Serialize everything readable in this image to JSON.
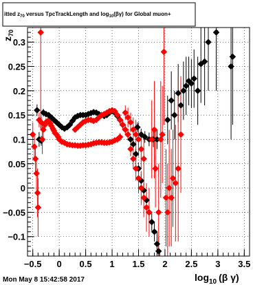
{
  "chart_data": {
    "type": "scatter",
    "title_main": "itted  z",
    "title_sub": "70",
    "title_rest": " versus TpcTrackLength and log",
    "title_sub2": "10",
    "title_end": "(βγ) for Global muon+",
    "xlabel_main": "log",
    "xlabel_sub": "10",
    "xlabel_end": "(β γ)",
    "ylabel_main": "z",
    "ylabel_sub": "70",
    "xlim": [
      -0.6,
      3.6
    ],
    "ylim": [
      -0.14,
      0.33
    ],
    "xticks": [
      -0.5,
      0,
      0.5,
      1,
      1.5,
      2,
      2.5,
      3,
      3.5
    ],
    "xtick_labels": [
      "−0.5",
      "0",
      "0.5",
      "1",
      "1.5",
      "2",
      "2.5",
      "3",
      "3.5"
    ],
    "yticks": [
      -0.1,
      -0.05,
      0,
      0.05,
      0.1,
      0.15,
      0.2,
      0.25,
      0.3
    ],
    "ytick_labels": [
      "−0.1",
      "−0.05",
      "0",
      "0.05",
      "0.1",
      "0.15",
      "0.2",
      "0.25",
      "0.3"
    ],
    "grid": true,
    "timestamp": "Mon May  8 15:42:58 2017",
    "series": [
      {
        "color": "#000000",
        "marker": "diamond",
        "points": [
          [
            -0.42,
            0.16,
            0.012
          ],
          [
            -0.38,
            0.1,
            0.015
          ],
          [
            -0.34,
            0.097,
            0.01
          ],
          [
            -0.3,
            0.155,
            0.008
          ],
          [
            -0.25,
            0.152,
            0.006
          ],
          [
            -0.2,
            0.15,
            0.005
          ],
          [
            -0.15,
            0.145,
            0.004
          ],
          [
            -0.1,
            0.14,
            0.004
          ],
          [
            -0.05,
            0.135,
            0.003
          ],
          [
            0.0,
            0.13,
            0.003
          ],
          [
            0.05,
            0.125,
            0.003
          ],
          [
            0.1,
            0.122,
            0.003
          ],
          [
            0.15,
            0.125,
            0.003
          ],
          [
            0.2,
            0.13,
            0.003
          ],
          [
            0.25,
            0.138,
            0.003
          ],
          [
            0.3,
            0.145,
            0.003
          ],
          [
            0.35,
            0.148,
            0.003
          ],
          [
            0.4,
            0.15,
            0.003
          ],
          [
            0.45,
            0.15,
            0.003
          ],
          [
            0.5,
            0.15,
            0.003
          ],
          [
            0.55,
            0.152,
            0.003
          ],
          [
            0.6,
            0.154,
            0.003
          ],
          [
            0.65,
            0.156,
            0.003
          ],
          [
            0.7,
            0.155,
            0.003
          ],
          [
            0.75,
            0.152,
            0.003
          ],
          [
            0.8,
            0.15,
            0.003
          ],
          [
            0.85,
            0.148,
            0.003
          ],
          [
            0.9,
            0.15,
            0.003
          ],
          [
            0.95,
            0.155,
            0.003
          ],
          [
            1.0,
            0.158,
            0.003
          ],
          [
            1.05,
            0.155,
            0.003
          ],
          [
            1.1,
            0.148,
            0.004
          ],
          [
            1.15,
            0.14,
            0.004
          ],
          [
            1.2,
            0.13,
            0.005
          ],
          [
            1.25,
            0.12,
            0.005
          ],
          [
            1.3,
            0.11,
            0.006
          ],
          [
            1.35,
            0.1,
            0.007
          ],
          [
            1.4,
            0.09,
            0.008
          ],
          [
            1.45,
            0.07,
            0.01
          ],
          [
            1.5,
            0.04,
            0.012
          ],
          [
            1.55,
            0.015,
            0.014
          ],
          [
            1.6,
            -0.005,
            0.015
          ],
          [
            1.65,
            -0.025,
            0.015
          ],
          [
            1.7,
            -0.05,
            0.015
          ],
          [
            1.75,
            -0.07,
            0.018
          ],
          [
            1.8,
            -0.09,
            0.02
          ],
          [
            1.85,
            -0.115,
            0.025
          ],
          [
            1.88,
            -0.13,
            0.03
          ],
          [
            1.48,
            0.125,
            0.01
          ],
          [
            1.55,
            0.11,
            0.012
          ],
          [
            1.62,
            0.105,
            0.012
          ],
          [
            1.7,
            0.1,
            0.014
          ],
          [
            1.78,
            0.1,
            0.016
          ],
          [
            1.85,
            0.1,
            0.02
          ],
          [
            2.05,
            0.14,
            0.05
          ],
          [
            2.12,
            0.18,
            0.06
          ],
          [
            2.18,
            0.15,
            0.05
          ],
          [
            2.25,
            0.195,
            0.06
          ],
          [
            2.3,
            0.17,
            0.05
          ],
          [
            2.35,
            0.2,
            0.06
          ],
          [
            2.4,
            0.21,
            0.06
          ],
          [
            2.45,
            0.22,
            0.05
          ],
          [
            2.5,
            0.215,
            0.05
          ],
          [
            2.55,
            0.225,
            0.06
          ],
          [
            2.62,
            0.2,
            0.07
          ],
          [
            2.68,
            0.255,
            0.08
          ],
          [
            2.75,
            0.26,
            0.09
          ],
          [
            2.82,
            0.3,
            0.1
          ],
          [
            2.97,
            0.32,
            0.12
          ],
          [
            3.25,
            0.25,
            0.15
          ],
          [
            3.28,
            0.27,
            0.14
          ]
        ]
      },
      {
        "color": "#ff0000",
        "marker": "diamond",
        "points": [
          [
            -0.5,
            0.11,
            0.025
          ],
          [
            -0.47,
            0.085,
            0.025
          ],
          [
            -0.45,
            0.06,
            0.03
          ],
          [
            -0.43,
            0.03,
            0.035
          ],
          [
            -0.41,
            -0.01,
            0.05
          ],
          [
            -0.4,
            -0.04,
            0.06
          ],
          [
            -0.35,
            0.32,
            0.2
          ],
          [
            -0.32,
            0.1,
            0.03
          ],
          [
            -0.3,
            0.12,
            0.015
          ],
          [
            -0.27,
            0.13,
            0.01
          ],
          [
            -0.25,
            0.135,
            0.009
          ],
          [
            -0.22,
            0.137,
            0.008
          ],
          [
            -0.2,
            0.137,
            0.007
          ],
          [
            -0.17,
            0.133,
            0.006
          ],
          [
            -0.15,
            0.128,
            0.006
          ],
          [
            -0.12,
            0.122,
            0.005
          ],
          [
            -0.1,
            0.118,
            0.005
          ],
          [
            -0.08,
            0.113,
            0.005
          ],
          [
            -0.05,
            0.11,
            0.005
          ],
          [
            -0.02,
            0.105,
            0.005
          ],
          [
            0.0,
            0.1,
            0.004
          ],
          [
            0.05,
            0.095,
            0.004
          ],
          [
            0.1,
            0.093,
            0.004
          ],
          [
            0.15,
            0.09,
            0.004
          ],
          [
            0.2,
            0.089,
            0.004
          ],
          [
            0.25,
            0.088,
            0.004
          ],
          [
            0.3,
            0.088,
            0.004
          ],
          [
            0.35,
            0.087,
            0.004
          ],
          [
            0.4,
            0.087,
            0.004
          ],
          [
            0.45,
            0.088,
            0.004
          ],
          [
            0.5,
            0.088,
            0.004
          ],
          [
            0.55,
            0.089,
            0.004
          ],
          [
            0.6,
            0.09,
            0.004
          ],
          [
            0.65,
            0.092,
            0.004
          ],
          [
            0.7,
            0.093,
            0.004
          ],
          [
            0.75,
            0.094,
            0.004
          ],
          [
            0.8,
            0.094,
            0.004
          ],
          [
            0.85,
            0.093,
            0.004
          ],
          [
            0.9,
            0.093,
            0.004
          ],
          [
            0.95,
            0.094,
            0.004
          ],
          [
            1.0,
            0.095,
            0.005
          ],
          [
            1.05,
            0.098,
            0.005
          ],
          [
            1.1,
            0.1,
            0.006
          ],
          [
            1.15,
            0.105,
            0.008
          ],
          [
            -0.38,
            0.14,
            0.015
          ],
          [
            -0.34,
            0.135,
            0.012
          ],
          [
            0.3,
            0.12,
            0.004
          ],
          [
            0.35,
            0.125,
            0.004
          ],
          [
            0.4,
            0.13,
            0.004
          ],
          [
            0.45,
            0.135,
            0.004
          ],
          [
            0.5,
            0.138,
            0.004
          ],
          [
            0.55,
            0.14,
            0.004
          ],
          [
            0.6,
            0.14,
            0.004
          ],
          [
            0.65,
            0.138,
            0.004
          ],
          [
            0.7,
            0.14,
            0.004
          ],
          [
            0.75,
            0.145,
            0.004
          ],
          [
            0.8,
            0.15,
            0.004
          ],
          [
            0.85,
            0.152,
            0.004
          ],
          [
            0.9,
            0.155,
            0.004
          ],
          [
            0.95,
            0.158,
            0.005
          ],
          [
            1.0,
            0.16,
            0.005
          ],
          [
            1.05,
            0.158,
            0.006
          ],
          [
            1.1,
            0.15,
            0.007
          ],
          [
            1.15,
            0.14,
            0.008
          ],
          [
            1.2,
            0.13,
            0.009
          ],
          [
            1.25,
            0.12,
            0.01
          ],
          [
            1.3,
            0.11,
            0.012
          ],
          [
            1.35,
            0.08,
            0.015
          ],
          [
            1.4,
            0.06,
            0.02
          ],
          [
            1.45,
            0.04,
            0.025
          ],
          [
            1.5,
            0.02,
            0.03
          ],
          [
            1.55,
            0.0,
            0.035
          ],
          [
            1.6,
            -0.02,
            0.04
          ],
          [
            1.65,
            -0.04,
            0.05
          ],
          [
            1.7,
            -0.05,
            0.05
          ],
          [
            1.75,
            0.1,
            0.08
          ],
          [
            1.8,
            0.12,
            0.1
          ],
          [
            1.82,
            0.04,
            0.08
          ],
          [
            1.88,
            -0.05,
            0.1
          ],
          [
            1.92,
            0.1,
            0.12
          ],
          [
            1.95,
            0.11,
            0.1
          ],
          [
            1.98,
            0.28,
            0.15
          ],
          [
            2.02,
            -0.02,
            0.1
          ],
          [
            2.05,
            -0.05,
            0.1
          ],
          [
            2.08,
            0.0,
            0.12
          ],
          [
            2.12,
            -0.02,
            0.1
          ],
          [
            2.15,
            0.02,
            0.1
          ],
          [
            2.2,
            0.01,
            0.12
          ],
          [
            2.25,
            0.04,
            0.15
          ],
          [
            2.3,
            0.11,
            0.12
          ],
          [
            1.25,
            0.155,
            0.015
          ],
          [
            1.3,
            0.145,
            0.02
          ],
          [
            1.35,
            0.135,
            0.02
          ],
          [
            1.4,
            0.12,
            0.025
          ],
          [
            1.45,
            0.11,
            0.03
          ],
          [
            1.5,
            0.1,
            0.035
          ],
          [
            1.55,
            0.08,
            0.04
          ],
          [
            1.6,
            0.06,
            0.04
          ]
        ]
      }
    ]
  }
}
